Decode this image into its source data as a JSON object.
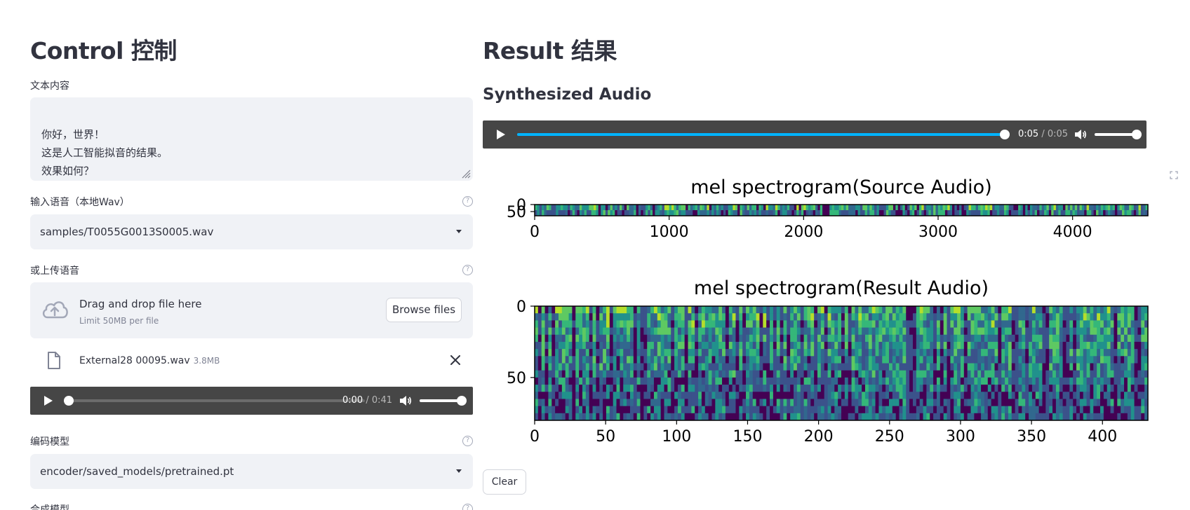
{
  "left": {
    "title": "Control 控制",
    "text_label": "文本内容",
    "text_value": "你好，世界！\n这是人工智能拟音的结果。\n效果如何？",
    "voice_label": "输入语音（本地Wav）",
    "voice_selected": "samples/T0055G0013S0005.wav",
    "upload_label": "或上传语音",
    "dropzone_title": "Drag and drop file here",
    "dropzone_limit": "Limit 50MB per file",
    "browse_label": "Browse files",
    "file_name": "External28 00095.wav",
    "file_size": "3.8MB",
    "player": {
      "current": "0:00",
      "duration": "/ 0:41",
      "progress": 0.0,
      "volume": 1.0
    },
    "encoder_label": "编码模型",
    "encoder_selected": "encoder/saved_models/pretrained.pt",
    "synth_label": "合成模型",
    "help_glyph": "?"
  },
  "right": {
    "title": "Result 结果",
    "subtitle": "Synthesized Audio",
    "player": {
      "current": "0:05",
      "duration": "/ 0:05",
      "progress": 1.0,
      "volume": 1.0
    },
    "clear_label": "Clear"
  },
  "colors": {
    "accent": "#00b3ff",
    "panel": "#f0f2f6",
    "text": "#31333f",
    "player_bg": "#464646"
  },
  "chart_data": [
    {
      "type": "heatmap",
      "title": "mel spectrogram(Source Audio)",
      "x_ticks": [
        "0",
        "1000",
        "2000",
        "3000",
        "4000"
      ],
      "y_ticks": [
        "0",
        "50"
      ],
      "xlim": [
        0,
        4560
      ],
      "ylim": [
        80,
        0
      ],
      "colormap": "viridis"
    },
    {
      "type": "heatmap",
      "title": "mel spectrogram(Result Audio)",
      "x_ticks": [
        "0",
        "50",
        "100",
        "150",
        "200",
        "250",
        "300",
        "350",
        "400"
      ],
      "y_ticks": [
        "0",
        "50"
      ],
      "xlim": [
        0,
        432
      ],
      "ylim": [
        80,
        0
      ],
      "colormap": "viridis"
    }
  ]
}
